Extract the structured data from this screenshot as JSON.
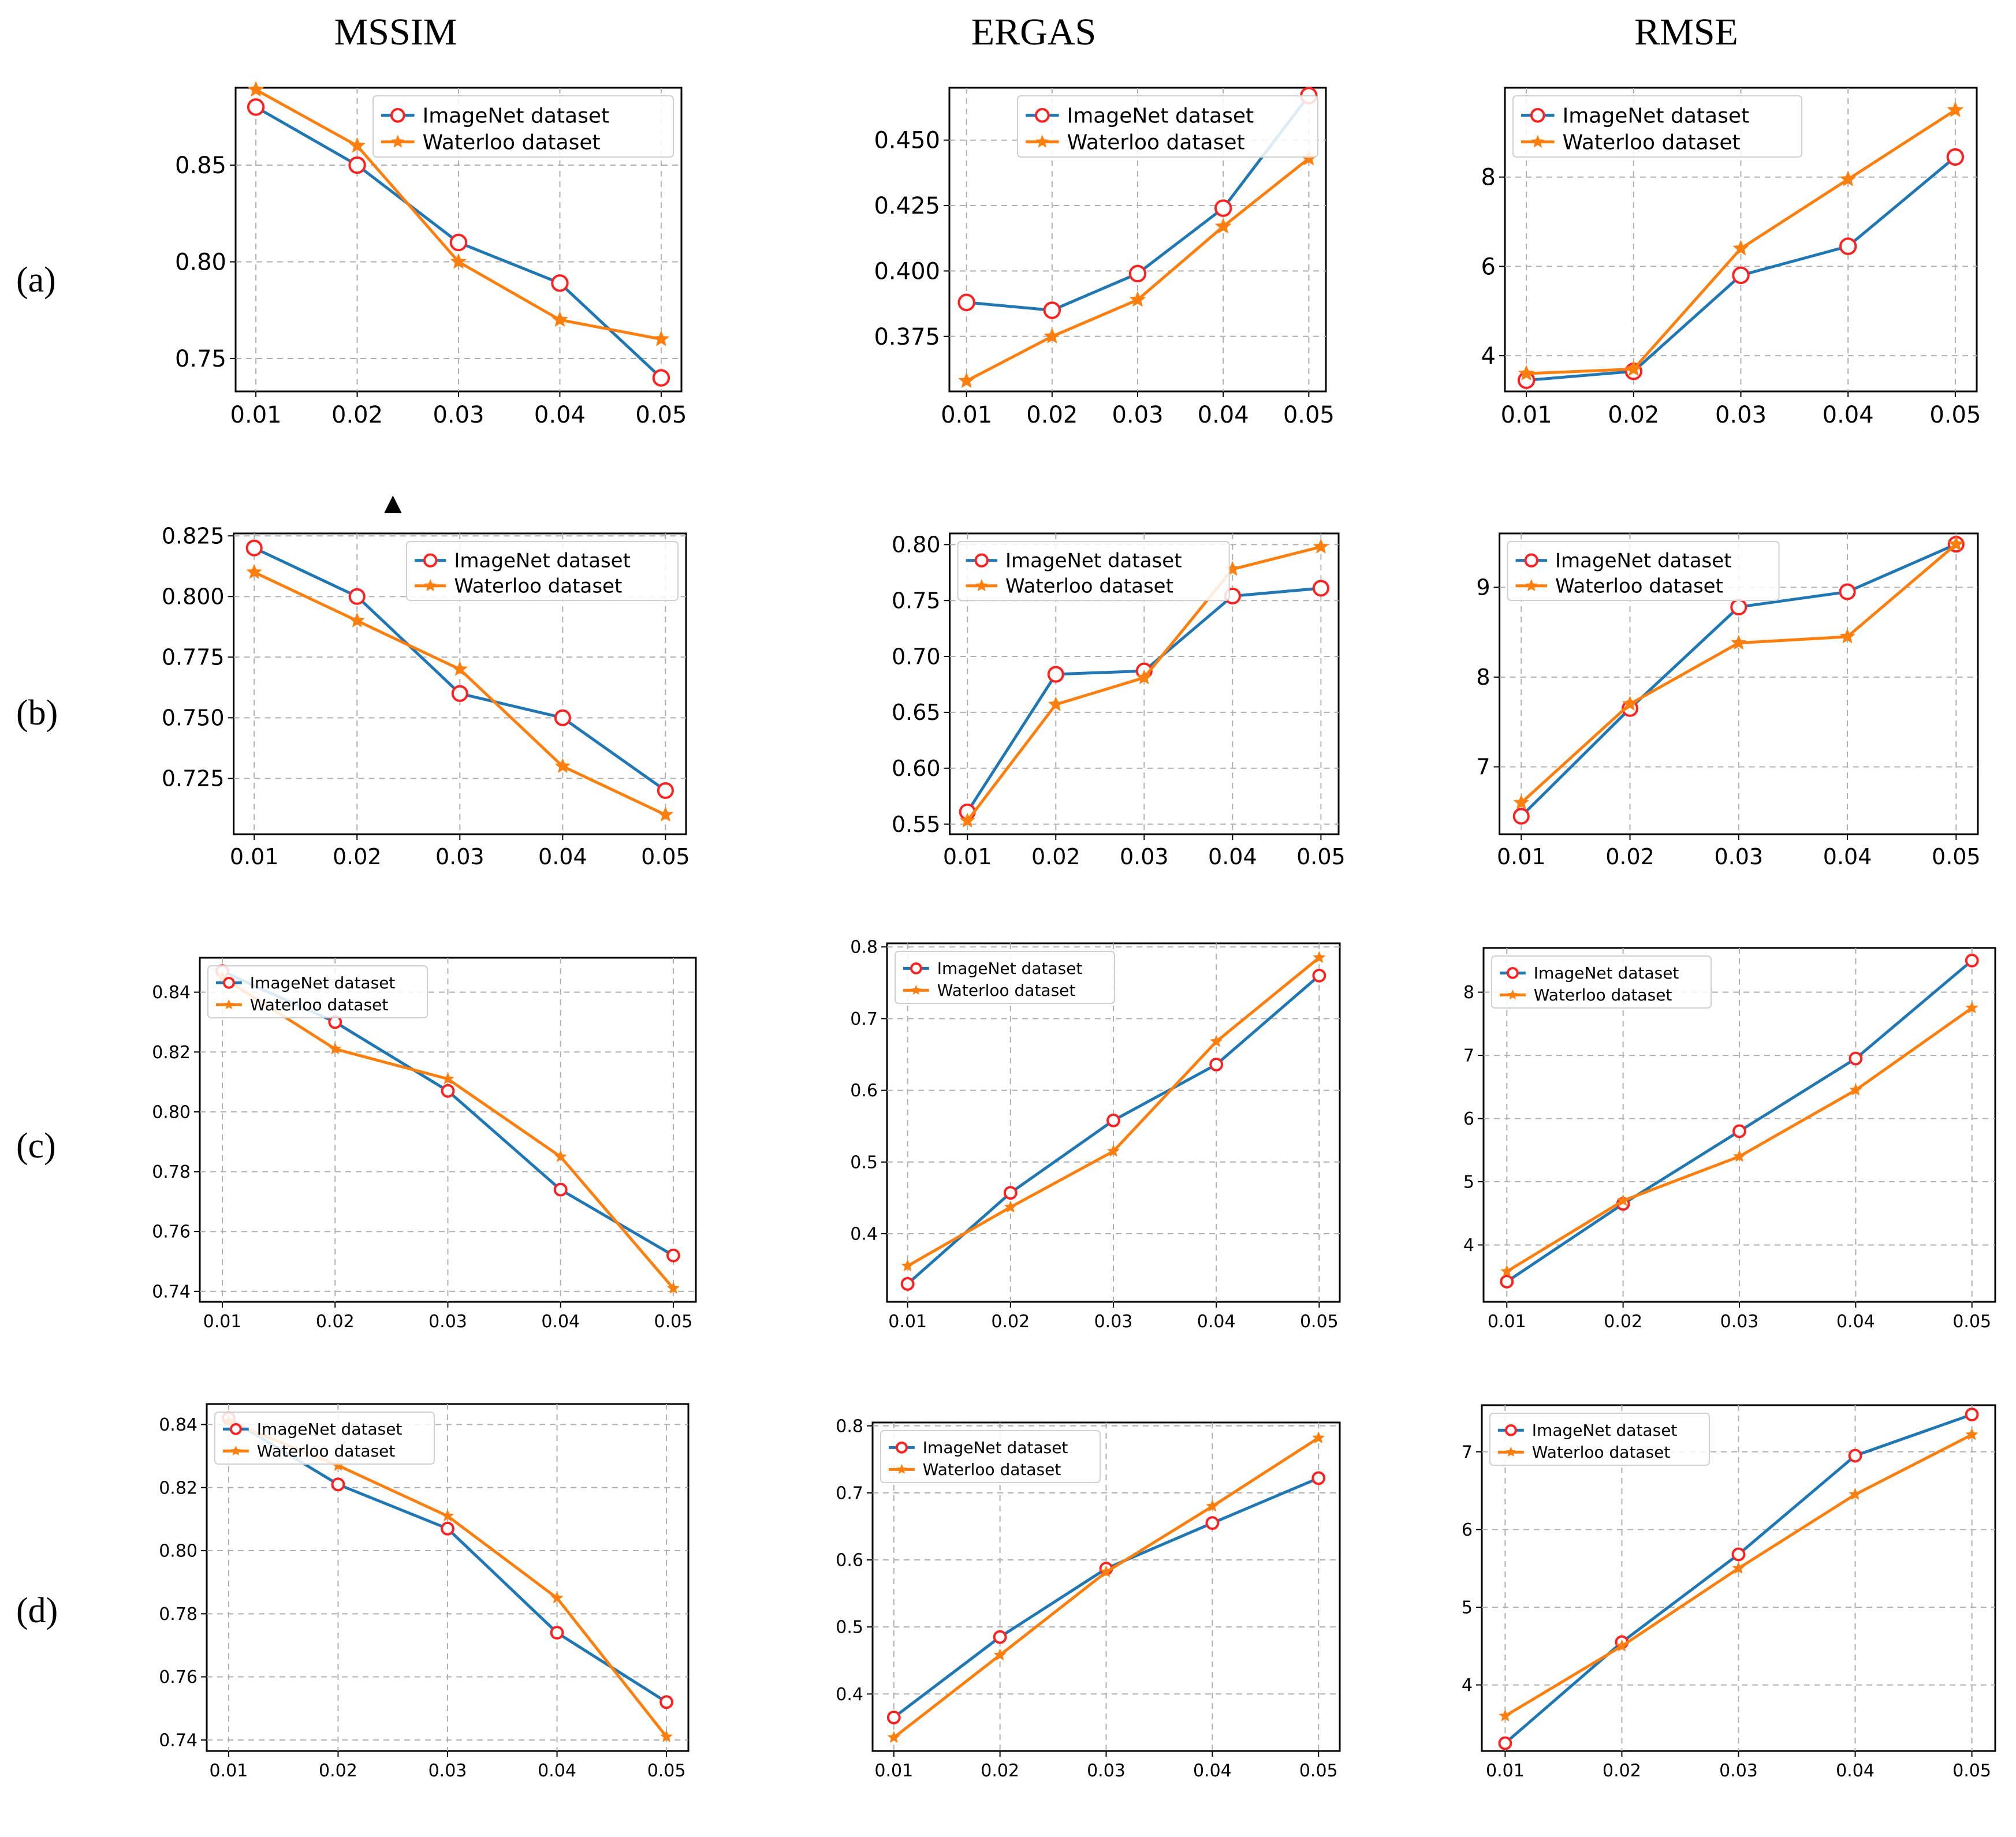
{
  "column_titles": [
    "MSSIM",
    "ERGAS",
    "RMSE"
  ],
  "row_labels": [
    "(a)",
    "(b)",
    "(c)",
    "(d)"
  ],
  "marker_glyph": "▲",
  "colors": {
    "imagenet": "#1f77b4",
    "waterloo": "#ff7f0e",
    "marker_edge": "#ff2020",
    "grid": "#b0b0b0"
  },
  "chart_data": [
    {
      "type": "line",
      "id": "a-mssim",
      "x": [
        0.01,
        0.02,
        0.03,
        0.04,
        0.05
      ],
      "xticks": [
        "0.01",
        "0.02",
        "0.03",
        "0.04",
        "0.05"
      ],
      "ylim": [
        0.733,
        0.89
      ],
      "yticks": [
        0.75,
        0.8,
        0.85
      ],
      "ytick_labels": [
        "0.75",
        "0.80",
        "0.85"
      ],
      "series": [
        {
          "name": "ImageNet dataset",
          "values": [
            0.88,
            0.85,
            0.81,
            0.789,
            0.74
          ]
        },
        {
          "name": "Waterloo dataset",
          "values": [
            0.889,
            0.86,
            0.8,
            0.77,
            0.76
          ]
        }
      ]
    },
    {
      "type": "line",
      "id": "a-ergas",
      "x": [
        0.01,
        0.02,
        0.03,
        0.04,
        0.05
      ],
      "xticks": [
        "0.01",
        "0.02",
        "0.03",
        "0.04",
        "0.05"
      ],
      "ylim": [
        0.354,
        0.47
      ],
      "yticks": [
        0.375,
        0.4,
        0.425,
        0.45
      ],
      "ytick_labels": [
        "0.375",
        "0.400",
        "0.425",
        "0.450"
      ],
      "series": [
        {
          "name": "ImageNet dataset",
          "values": [
            0.388,
            0.385,
            0.399,
            0.424,
            0.467
          ]
        },
        {
          "name": "Waterloo dataset",
          "values": [
            0.358,
            0.375,
            0.389,
            0.417,
            0.443
          ]
        }
      ]
    },
    {
      "type": "line",
      "id": "a-rmse",
      "x": [
        0.01,
        0.02,
        0.03,
        0.04,
        0.05
      ],
      "xticks": [
        "0.01",
        "0.02",
        "0.03",
        "0.04",
        "0.05"
      ],
      "ylim": [
        3.2,
        10.0
      ],
      "yticks": [
        4,
        6,
        8
      ],
      "ytick_labels": [
        "4",
        "6",
        "8"
      ],
      "series": [
        {
          "name": "ImageNet dataset",
          "values": [
            3.45,
            3.65,
            5.8,
            6.45,
            8.45
          ]
        },
        {
          "name": "Waterloo dataset",
          "values": [
            3.6,
            3.7,
            6.4,
            7.95,
            9.5
          ]
        }
      ]
    },
    {
      "type": "line",
      "id": "b-mssim",
      "x": [
        0.01,
        0.02,
        0.03,
        0.04,
        0.05
      ],
      "xticks": [
        "0.01",
        "0.02",
        "0.03",
        "0.04",
        "0.05"
      ],
      "ylim": [
        0.702,
        0.826
      ],
      "yticks": [
        0.725,
        0.75,
        0.775,
        0.8,
        0.825
      ],
      "ytick_labels": [
        "0.725",
        "0.750",
        "0.775",
        "0.800",
        "0.825"
      ],
      "series": [
        {
          "name": "ImageNet dataset",
          "values": [
            0.82,
            0.8,
            0.76,
            0.75,
            0.72
          ]
        },
        {
          "name": "Waterloo dataset",
          "values": [
            0.81,
            0.79,
            0.77,
            0.73,
            0.71
          ]
        }
      ]
    },
    {
      "type": "line",
      "id": "b-ergas",
      "x": [
        0.01,
        0.02,
        0.03,
        0.04,
        0.05
      ],
      "xticks": [
        "0.01",
        "0.02",
        "0.03",
        "0.04",
        "0.05"
      ],
      "ylim": [
        0.541,
        0.81
      ],
      "yticks": [
        0.55,
        0.6,
        0.65,
        0.7,
        0.75,
        0.8
      ],
      "ytick_labels": [
        "0.55",
        "0.60",
        "0.65",
        "0.70",
        "0.75",
        "0.80"
      ],
      "series": [
        {
          "name": "ImageNet dataset",
          "values": [
            0.561,
            0.684,
            0.687,
            0.754,
            0.761
          ]
        },
        {
          "name": "Waterloo dataset",
          "values": [
            0.553,
            0.657,
            0.681,
            0.778,
            0.798
          ]
        }
      ]
    },
    {
      "type": "line",
      "id": "b-rmse",
      "x": [
        0.01,
        0.02,
        0.03,
        0.04,
        0.05
      ],
      "xticks": [
        "0.01",
        "0.02",
        "0.03",
        "0.04",
        "0.05"
      ],
      "ylim": [
        6.25,
        9.6
      ],
      "yticks": [
        7,
        8,
        9
      ],
      "ytick_labels": [
        "7",
        "8",
        "9"
      ],
      "series": [
        {
          "name": "ImageNet dataset",
          "values": [
            6.45,
            7.65,
            8.78,
            8.95,
            9.48
          ]
        },
        {
          "name": "Waterloo dataset",
          "values": [
            6.6,
            7.7,
            8.38,
            8.45,
            9.48
          ]
        }
      ]
    },
    {
      "type": "line",
      "id": "c-mssim",
      "x": [
        0.01,
        0.02,
        0.03,
        0.04,
        0.05
      ],
      "xticks": [
        "0.01",
        "0.02",
        "0.03",
        "0.04",
        "0.05"
      ],
      "ylim": [
        0.7365,
        0.8515
      ],
      "yticks": [
        0.74,
        0.76,
        0.78,
        0.8,
        0.82,
        0.84
      ],
      "ytick_labels": [
        "0.74",
        "0.76",
        "0.78",
        "0.80",
        "0.82",
        "0.84"
      ],
      "series": [
        {
          "name": "ImageNet dataset",
          "values": [
            0.847,
            0.83,
            0.807,
            0.774,
            0.752
          ]
        },
        {
          "name": "Waterloo dataset",
          "values": [
            0.845,
            0.821,
            0.811,
            0.785,
            0.741
          ]
        }
      ]
    },
    {
      "type": "line",
      "id": "c-ergas",
      "x": [
        0.01,
        0.02,
        0.03,
        0.04,
        0.05
      ],
      "xticks": [
        "0.01",
        "0.02",
        "0.03",
        "0.04",
        "0.05"
      ],
      "ylim": [
        0.305,
        0.805
      ],
      "yticks": [
        0.4,
        0.5,
        0.6,
        0.7,
        0.8
      ],
      "ytick_labels": [
        "0.4",
        "0.5",
        "0.6",
        "0.7",
        "0.8"
      ],
      "series": [
        {
          "name": "ImageNet dataset",
          "values": [
            0.33,
            0.457,
            0.558,
            0.636,
            0.76
          ]
        },
        {
          "name": "Waterloo dataset",
          "values": [
            0.355,
            0.437,
            0.515,
            0.668,
            0.785
          ]
        }
      ]
    },
    {
      "type": "line",
      "id": "c-rmse",
      "x": [
        0.01,
        0.02,
        0.03,
        0.04,
        0.05
      ],
      "xticks": [
        "0.01",
        "0.02",
        "0.03",
        "0.04",
        "0.05"
      ],
      "ylim": [
        3.1,
        8.7
      ],
      "yticks": [
        4,
        5,
        6,
        7,
        8
      ],
      "ytick_labels": [
        "4",
        "5",
        "6",
        "7",
        "8"
      ],
      "series": [
        {
          "name": "ImageNet dataset",
          "values": [
            3.42,
            4.65,
            5.8,
            6.95,
            8.5
          ]
        },
        {
          "name": "Waterloo dataset",
          "values": [
            3.58,
            4.7,
            5.4,
            6.45,
            7.75
          ]
        }
      ]
    },
    {
      "type": "line",
      "id": "d-mssim",
      "x": [
        0.01,
        0.02,
        0.03,
        0.04,
        0.05
      ],
      "xticks": [
        "0.01",
        "0.02",
        "0.03",
        "0.04",
        "0.05"
      ],
      "ylim": [
        0.7365,
        0.8465
      ],
      "yticks": [
        0.74,
        0.76,
        0.78,
        0.8,
        0.82,
        0.84
      ],
      "ytick_labels": [
        "0.74",
        "0.76",
        "0.78",
        "0.80",
        "0.82",
        "0.84"
      ],
      "series": [
        {
          "name": "ImageNet dataset",
          "values": [
            0.842,
            0.821,
            0.807,
            0.774,
            0.752
          ]
        },
        {
          "name": "Waterloo dataset",
          "values": [
            0.841,
            0.827,
            0.811,
            0.785,
            0.741
          ]
        }
      ]
    },
    {
      "type": "line",
      "id": "d-ergas",
      "x": [
        0.01,
        0.02,
        0.03,
        0.04,
        0.05
      ],
      "xticks": [
        "0.01",
        "0.02",
        "0.03",
        "0.04",
        "0.05"
      ],
      "ylim": [
        0.315,
        0.805
      ],
      "yticks": [
        0.4,
        0.5,
        0.6,
        0.7,
        0.8
      ],
      "ytick_labels": [
        "0.4",
        "0.5",
        "0.6",
        "0.7",
        "0.8"
      ],
      "series": [
        {
          "name": "ImageNet dataset",
          "values": [
            0.365,
            0.485,
            0.587,
            0.655,
            0.722
          ]
        },
        {
          "name": "Waterloo dataset",
          "values": [
            0.335,
            0.458,
            0.582,
            0.68,
            0.782
          ]
        }
      ]
    },
    {
      "type": "line",
      "id": "d-rmse",
      "x": [
        0.01,
        0.02,
        0.03,
        0.04,
        0.05
      ],
      "xticks": [
        "0.01",
        "0.02",
        "0.03",
        "0.04",
        "0.05"
      ],
      "ylim": [
        3.15,
        7.6
      ],
      "yticks": [
        4,
        5,
        6,
        7
      ],
      "ytick_labels": [
        "4",
        "5",
        "6",
        "7"
      ],
      "series": [
        {
          "name": "ImageNet dataset",
          "values": [
            3.25,
            4.55,
            5.68,
            6.95,
            7.48
          ]
        },
        {
          "name": "Waterloo dataset",
          "values": [
            3.6,
            4.5,
            5.5,
            6.45,
            7.22
          ]
        }
      ]
    }
  ]
}
